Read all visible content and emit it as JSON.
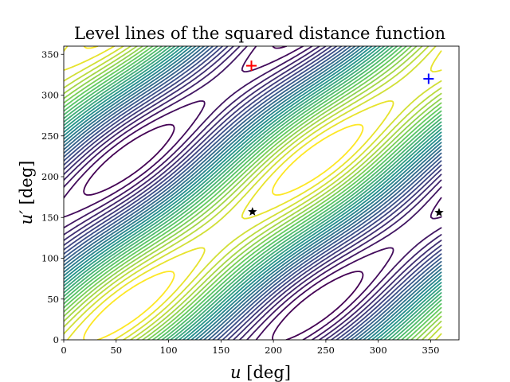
{
  "chart_data": {
    "type": "contour",
    "title": "Level lines of the squared distance function",
    "xlabel_var": "u",
    "xlabel_unit": "[deg]",
    "ylabel_var": "u′",
    "ylabel_unit": "[deg]",
    "xlim": [
      0,
      377
    ],
    "ylim": [
      0,
      360
    ],
    "xticks": [
      0,
      50,
      100,
      150,
      200,
      250,
      300,
      350
    ],
    "yticks": [
      0,
      50,
      100,
      150,
      200,
      250,
      300,
      350
    ],
    "grid": false,
    "colormap": [
      "#440154",
      "#3b528b",
      "#21918c",
      "#5ec962",
      "#fde725"
    ],
    "contour_levels": 30,
    "maxima": [
      {
        "u": 180,
        "u_prime": 337
      },
      {
        "u": 215,
        "u_prime": 15
      }
    ],
    "markers": [
      {
        "u": 179,
        "u_prime": 336,
        "symbol": "plus",
        "color": "#ff0000"
      },
      {
        "u": 348,
        "u_prime": 320,
        "symbol": "plus",
        "color": "#0000ff"
      },
      {
        "u": 180,
        "u_prime": 157,
        "symbol": "star",
        "color": "#000000"
      },
      {
        "u": 358,
        "u_prime": 156,
        "symbol": "star",
        "color": "#000000"
      }
    ]
  }
}
